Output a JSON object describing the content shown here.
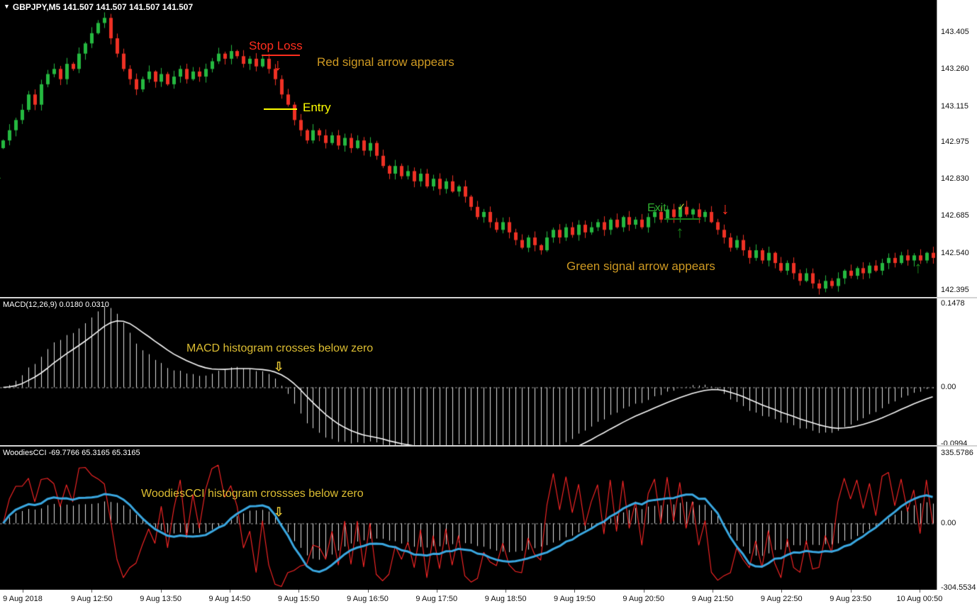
{
  "window": {
    "dropdown_icon": "▼"
  },
  "annotations": {
    "stop_loss": "Stop Loss",
    "red_signal": "Red signal arrow appears",
    "entry": "Entry",
    "exit": "Exit",
    "exit_check": "✓",
    "green_signal": "Green signal arrow appears",
    "macd_note": "MACD histogram crosses below zero",
    "cci_note": "WoodiesCCI histogram crossses below zero",
    "down_arrow": "↓",
    "up_arrow": "↑",
    "hollow_down_arrow": "⇩"
  },
  "colors": {
    "red": "#ff2e1e",
    "yellow": "#ffff00",
    "gold": "#cf9a22",
    "note_yellow": "#ddbe32",
    "green": "#2fae2f",
    "dark_green": "#177c17",
    "check_green": "#b9c437"
  },
  "time_axis": {
    "labels": [
      "9 Aug 2018",
      "9 Aug 12:50",
      "9 Aug 13:50",
      "9 Aug 14:50",
      "9 Aug 15:50",
      "9 Aug 16:50",
      "9 Aug 17:50",
      "9 Aug 18:50",
      "9 Aug 19:50",
      "9 Aug 20:50",
      "9 Aug 21:50",
      "9 Aug 22:50",
      "9 Aug 23:50",
      "10 Aug 00:50"
    ]
  },
  "chart_data": [
    {
      "type": "candlestick",
      "symbol": "GBPJPY",
      "timeframe": "M5",
      "title": "GBPJPY,M5 141.507 141.507 141.507 141.507",
      "ylim": [
        142.367,
        143.53
      ],
      "axis": {
        "values": [
          143.405,
          143.26,
          143.115,
          142.975,
          142.83,
          142.685,
          142.54,
          142.395
        ],
        "labels": [
          "143.405",
          "143.260",
          "143.115",
          "142.975",
          "142.830",
          "142.685",
          "142.540",
          "142.395"
        ]
      },
      "up_color": "#25b940",
      "down_color": "#ef3124",
      "closes": [
        142.98,
        143.02,
        143.06,
        143.1,
        143.16,
        143.12,
        143.2,
        143.24,
        143.26,
        143.22,
        143.28,
        143.26,
        143.32,
        143.36,
        143.4,
        143.44,
        143.46,
        143.38,
        143.32,
        143.26,
        143.22,
        143.18,
        143.22,
        143.25,
        143.21,
        143.24,
        143.2,
        143.23,
        143.26,
        143.22,
        143.25,
        143.23,
        143.26,
        143.29,
        143.32,
        143.3,
        143.33,
        143.31,
        143.28,
        143.3,
        143.27,
        143.3,
        143.26,
        143.22,
        143.16,
        143.12,
        143.06,
        143.02,
        142.98,
        143.02,
        143.0,
        142.97,
        143.0,
        142.96,
        142.99,
        142.95,
        142.98,
        142.94,
        142.97,
        142.92,
        142.88,
        142.85,
        142.88,
        142.84,
        142.86,
        142.82,
        142.85,
        142.8,
        142.83,
        142.79,
        142.82,
        142.78,
        142.8,
        142.76,
        142.72,
        142.68,
        142.7,
        142.66,
        142.63,
        142.66,
        142.62,
        142.59,
        142.56,
        142.6,
        142.57,
        142.55,
        142.6,
        142.63,
        142.6,
        142.64,
        142.61,
        142.65,
        142.62,
        142.64,
        142.66,
        142.63,
        142.67,
        142.64,
        142.68,
        142.65,
        142.67,
        142.64,
        142.68,
        142.7,
        142.67,
        142.71,
        142.68,
        142.72,
        142.69,
        142.71,
        142.68,
        142.7,
        142.66,
        142.63,
        142.6,
        142.56,
        142.59,
        142.55,
        142.52,
        142.55,
        142.51,
        142.54,
        142.5,
        142.47,
        142.5,
        142.46,
        142.43,
        142.46,
        142.42,
        142.4,
        142.43,
        142.41,
        142.44,
        142.47,
        142.45,
        142.48,
        142.46,
        142.49,
        142.47,
        142.5,
        142.52,
        142.5,
        142.53,
        142.51,
        142.53,
        142.51,
        142.54,
        142.52
      ]
    },
    {
      "type": "histogram+line",
      "name": "MACD",
      "label": "MACD(12,26,9) 0.0180 0.0310",
      "params": {
        "fast": 12,
        "slow": 26,
        "signal": 9
      },
      "peak_target": 0.143,
      "ylim": [
        -0.102,
        0.157
      ],
      "axis": {
        "values": [
          0.1478,
          0,
          -0.0994
        ],
        "labels": [
          "0.1478",
          "0.00",
          "-0.0994"
        ]
      },
      "bar_color": "#e0e0e0",
      "line_color": "#fafafa"
    },
    {
      "type": "histogram+line+line",
      "name": "WoodiesCCI",
      "label": "WoodiesCCI -69.7766 65.3165 65.3165",
      "params": {
        "fast_period": 7,
        "slow_period": 20,
        "smooth": 7
      },
      "red_target": 300,
      "blue_target": 230,
      "hist_ratio": 0.75,
      "ylim": [
        -315,
        365
      ],
      "axis": {
        "values": [
          335.5786,
          0,
          -304.5534
        ],
        "labels": [
          "335.5786",
          "0.00",
          "-304.5534"
        ]
      },
      "bar_color": "#e0e0e0",
      "fast_color": "#ff2727",
      "slow_color": "#3aa7e0"
    }
  ]
}
